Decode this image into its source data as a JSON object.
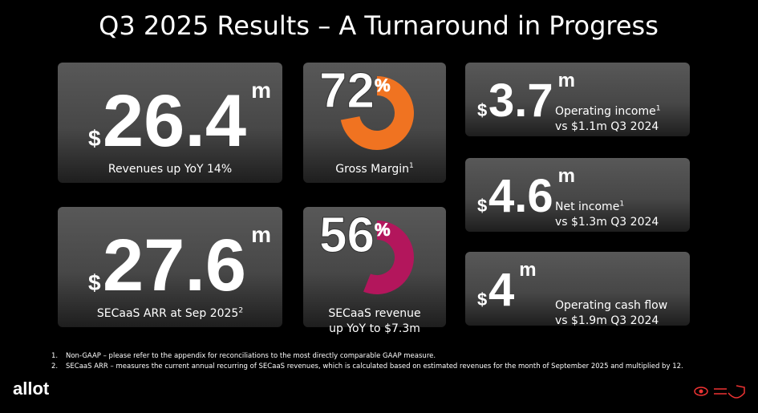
{
  "title": "Q3 2025 Results – A Turnaround in Progress",
  "cards": [
    {
      "currency": "$",
      "amount": "26.4",
      "unit": "m",
      "label": "Revenues up YoY 14%"
    },
    {
      "currency": "$",
      "amount": "27.6",
      "unit": "m",
      "label": "SECaaS ARR at Sep 2025",
      "note": "2"
    }
  ],
  "gauges": [
    {
      "value": 72,
      "unit": "%",
      "color": "#f07321",
      "label_lines": [
        "Gross Margin"
      ],
      "note": "1"
    },
    {
      "value": 56,
      "unit": "%",
      "color": "#b3165c",
      "label_lines": [
        "SECaaS revenue",
        "up YoY to $7.3m"
      ]
    }
  ],
  "metrics": [
    {
      "currency": "$",
      "amount": "3.7",
      "unit": "m",
      "label": "Operating income",
      "note": "1",
      "comparison": "vs $1.1m Q3 2024"
    },
    {
      "currency": "$",
      "amount": "4.6",
      "unit": "m",
      "label": "Net income",
      "note": "1",
      "comparison": "vs $1.3m Q3 2024"
    },
    {
      "currency": "$",
      "amount": "4",
      "unit": "m",
      "label": "Operating cash flow",
      "comparison": "vs $1.9m Q3 2024"
    }
  ],
  "footnotes": [
    {
      "marker": "1.",
      "text": "Non-GAAP – please refer to the appendix for reconciliations to the most directly comparable GAAP measure."
    },
    {
      "marker": "2.",
      "text": "SECaaS ARR – measures the current annual recurring of SECaaS revenues, which is calculated based on estimated revenues for the month of September 2025 and multiplied by 12."
    }
  ],
  "logo": "allot"
}
